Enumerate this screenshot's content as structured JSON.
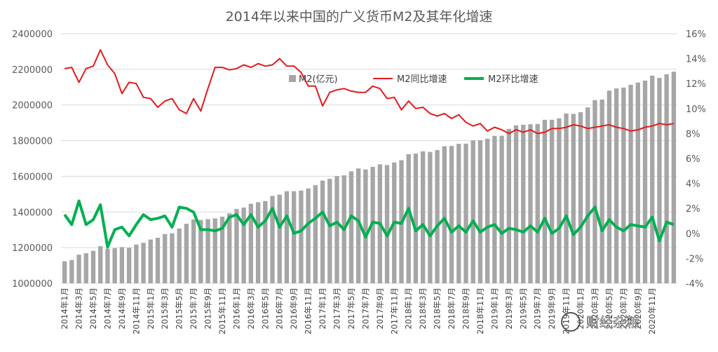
{
  "chart_data": {
    "type": "bar+line",
    "title": "2014年以来中国的广义货币M2及其年化增速",
    "left_axis": {
      "min": 1000000,
      "max": 2400000,
      "ticks": [
        "1000000",
        "1200000",
        "1400000",
        "1600000",
        "1800000",
        "2000000",
        "2200000",
        "2400000"
      ]
    },
    "right_axis": {
      "min": -4,
      "max": 16,
      "ticks": [
        "-4%",
        "-2%",
        "0%",
        "2%",
        "4%",
        "6%",
        "8%",
        "10%",
        "12%",
        "14%",
        "16%"
      ]
    },
    "x_labels": [
      "2014年1月",
      "2014年3月",
      "2014年5月",
      "2014年7月",
      "2014年9月",
      "2014年11月",
      "2015年1月",
      "2015年3月",
      "2015年5月",
      "2015年7月",
      "2015年9月",
      "2015年11月",
      "2016年1月",
      "2016年3月",
      "2016年5月",
      "2016年7月",
      "2016年9月",
      "2016年11月",
      "2017年1月",
      "2017年3月",
      "2017年5月",
      "2017年7月",
      "2017年9月",
      "2017年11月",
      "2018年1月",
      "2018年3月",
      "2018年5月",
      "2018年7月",
      "2018年9月",
      "2018年11月",
      "2019年1月",
      "2019年3月",
      "2019年5月",
      "2019年7月",
      "2019年9月",
      "2019年11月",
      "2020年1月",
      "2020年3月",
      "2020年5月",
      "2020年7月",
      "2020年9月",
      "2020年11月"
    ],
    "legend": [
      "M2(亿元)",
      "M2同比增速",
      "M2环比增速"
    ],
    "series": [
      {
        "name": "M2(亿元)",
        "type": "bar",
        "color": "#a6a6a6",
        "values": [
          1123500,
          1130600,
          1160700,
          1168800,
          1182000,
          1208000,
          1194100,
          1197400,
          1202900,
          1199400,
          1217100,
          1227100,
          1245700,
          1255300,
          1276000,
          1280600,
          1307400,
          1333400,
          1358300,
          1355100,
          1359800,
          1363600,
          1373400,
          1392300,
          1416300,
          1424600,
          1446200,
          1454600,
          1461000,
          1490100,
          1497000,
          1516400,
          1516400,
          1520000,
          1532000,
          1550100,
          1575900,
          1586000,
          1601400,
          1605100,
          1627600,
          1643900,
          1638600,
          1653000,
          1667000,
          1662900,
          1677700,
          1690200,
          1724300,
          1727700,
          1739900,
          1736800,
          1747000,
          1768500,
          1770100,
          1782000,
          1783100,
          1801200,
          1802000,
          1811200,
          1826800,
          1827500,
          1865900,
          1885600,
          1888800,
          1891900,
          1893300,
          1916700,
          1917200,
          1925200,
          1952500,
          1950100,
          1959400,
          1986500,
          2026900,
          2030600,
          2080900,
          2093000,
          2097600,
          2113200,
          2125800,
          2136800,
          2164100,
          2151800,
          2172000,
          2186800
        ],
        "growth_pct": [
          13.2,
          13.3,
          12.1,
          13.2,
          13.4,
          14.7,
          13.5,
          12.8,
          11.2,
          12.1,
          12.0,
          10.9,
          10.8,
          10.1,
          10.6,
          10.8,
          9.9,
          9.6,
          10.8,
          9.8,
          11.6,
          13.3,
          13.3,
          13.1,
          13.2,
          13.5,
          13.3,
          13.6,
          13.4,
          13.5,
          14.0,
          13.4,
          13.4,
          12.9,
          11.8,
          11.8,
          10.2,
          11.3,
          11.5,
          11.6,
          11.4,
          11.3,
          11.3,
          11.8,
          11.6,
          10.8,
          10.9,
          9.9,
          10.6,
          10.0,
          10.1,
          9.6,
          9.4,
          9.6,
          9.2,
          9.5,
          8.9,
          8.6,
          8.8,
          8.2,
          8.5,
          8.3,
          8.0,
          8.3,
          8.1,
          8.3,
          8.0,
          8.1,
          8.4,
          8.4,
          8.5,
          8.7,
          8.6,
          8.4,
          8.5,
          8.6,
          8.7,
          8.5,
          8.4,
          8.2,
          8.3,
          8.5,
          8.6,
          8.8,
          8.7,
          8.8
        ],
        "mom_pct": [
          1.5,
          0.7,
          2.6,
          0.7,
          1.1,
          2.3,
          -1.1,
          0.3,
          0.5,
          -0.2,
          0.7,
          1.5,
          1.1,
          1.2,
          1.4,
          0.5,
          2.1,
          2.0,
          1.7,
          0.3,
          0.3,
          0.2,
          0.4,
          1.3,
          1.5,
          0.7,
          1.5,
          0.5,
          1.0,
          2.0,
          0.5,
          1.4,
          0.0,
          0.2,
          0.8,
          1.2,
          1.7,
          0.6,
          0.9,
          0.3,
          1.4,
          1.0,
          -0.3,
          0.9,
          0.8,
          -0.2,
          0.9,
          0.8,
          2.0,
          0.2,
          0.7,
          -0.2,
          0.6,
          1.2,
          0.1,
          0.6,
          0.1,
          1.0,
          0.1,
          0.5,
          0.7,
          0.0,
          0.4,
          0.3,
          0.1,
          0.6,
          0.1,
          1.2,
          0.0,
          0.4,
          1.4,
          -0.1,
          0.5,
          1.4,
          2.1,
          0.2,
          1.1,
          0.5,
          0.2,
          0.7,
          0.6,
          0.5,
          1.3,
          -0.6,
          0.9,
          0.7
        ]
      },
      {
        "name": "M2同比增速",
        "type": "line",
        "color": "#e31a1c",
        "values": []
      },
      {
        "name": "M2环比增速",
        "type": "line",
        "color": "#00b050",
        "values": []
      }
    ]
  },
  "watermark": "财经杂粮"
}
